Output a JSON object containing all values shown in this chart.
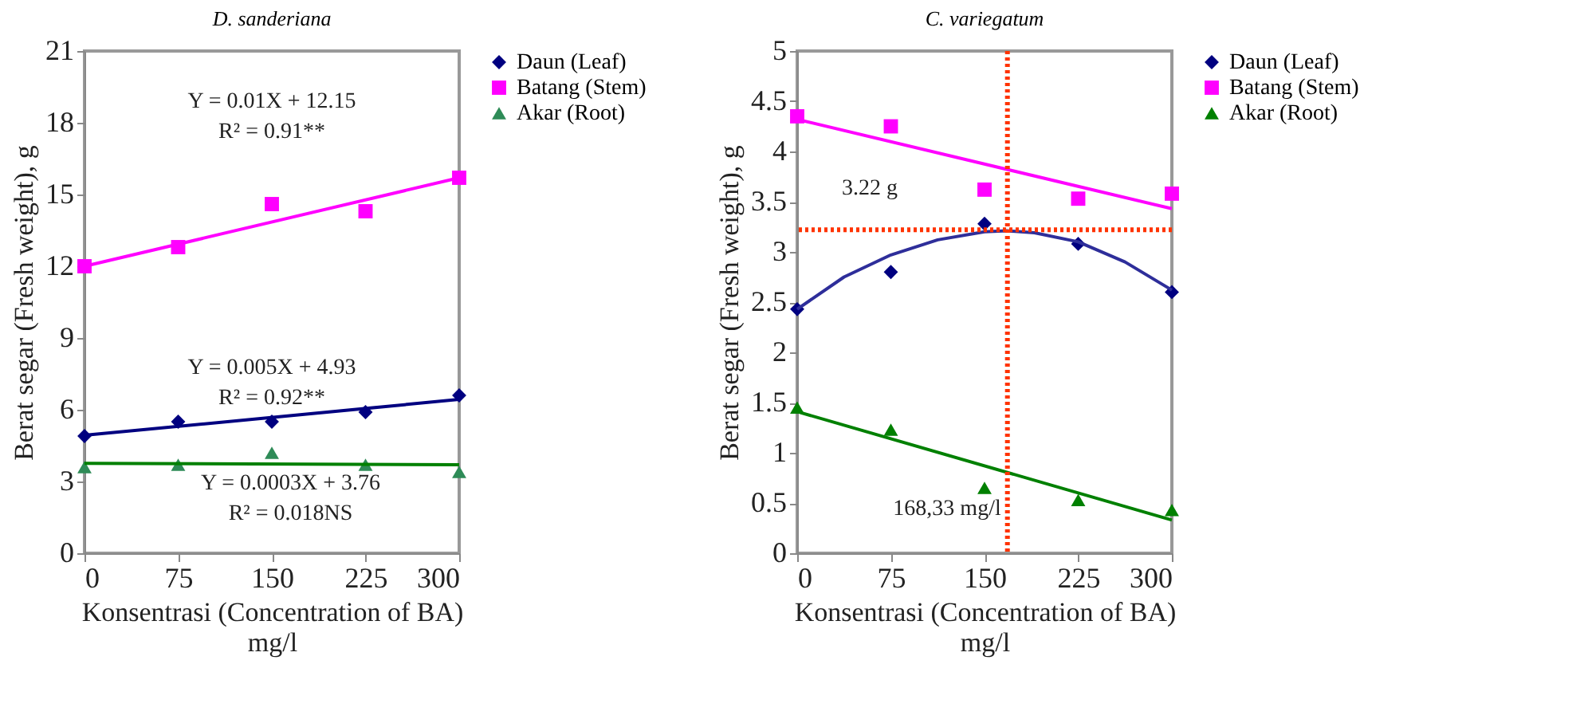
{
  "chart_data": [
    {
      "type": "scatter",
      "title": "D. sanderiana",
      "xlabel": "Konsentrasi (Concentration of BA) mg/l",
      "ylabel": "Berat segar (Fresh weight), g",
      "x": [
        0,
        75,
        150,
        225,
        300
      ],
      "xlim": [
        0,
        300
      ],
      "xticks": [
        0,
        75,
        150,
        225,
        300
      ],
      "ylim": [
        0,
        21
      ],
      "yticks": [
        0,
        3,
        6,
        9,
        12,
        15,
        18,
        21
      ],
      "grid": false,
      "legend": "right",
      "series": [
        {
          "name": "Daun (Leaf)",
          "color": "#000080",
          "marker": "diamond",
          "values": [
            4.9,
            5.5,
            5.5,
            5.9,
            6.6
          ]
        },
        {
          "name": "Batang (Stem)",
          "color": "#ff00ff",
          "marker": "square",
          "values": [
            12.0,
            12.8,
            14.6,
            14.3,
            15.7
          ]
        },
        {
          "name": "Akar (Root)",
          "color": "#2e8b57",
          "marker": "triangle",
          "values": [
            3.6,
            3.7,
            4.2,
            3.7,
            3.4
          ]
        },
        {
          "type": "line",
          "color": "#000080",
          "x": [
            0,
            300
          ],
          "values": [
            4.93,
            6.43
          ]
        },
        {
          "type": "line",
          "color": "#ff00ff",
          "x": [
            0,
            300
          ],
          "values": [
            12.0,
            15.7
          ]
        },
        {
          "type": "line",
          "color": "#008000",
          "x": [
            0,
            300
          ],
          "values": [
            3.76,
            3.7
          ]
        }
      ],
      "annotations": [
        "Y = 0.01X + 12.15",
        "R² = 0.91**",
        "Y = 0.005X + 4.93",
        "R² = 0.92**",
        "Y = 0.0003X + 3.76",
        "R² = 0.018NS"
      ]
    },
    {
      "type": "scatter",
      "title": "C. variegatum",
      "xlabel": "Konsentrasi (Concentration of BA) mg/l",
      "ylabel": "Berat segar (Fresh weight), g",
      "x": [
        0,
        75,
        150,
        225,
        300
      ],
      "xlim": [
        0,
        300
      ],
      "xticks": [
        0,
        75,
        150,
        225,
        300
      ],
      "ylim": [
        0,
        5
      ],
      "yticks": [
        0,
        0.5,
        1,
        1.5,
        2,
        2.5,
        3,
        3.5,
        4,
        4.5,
        5
      ],
      "grid": false,
      "legend": "right",
      "series": [
        {
          "name": "Daun (Leaf)",
          "color": "#000080",
          "marker": "diamond",
          "values": [
            2.43,
            2.8,
            3.28,
            3.08,
            2.6
          ]
        },
        {
          "name": "Batang (Stem)",
          "color": "#ff00ff",
          "marker": "square",
          "values": [
            4.35,
            4.25,
            3.62,
            3.53,
            3.58
          ]
        },
        {
          "name": "Akar (Root)",
          "color": "#008000",
          "marker": "triangle",
          "values": [
            1.45,
            1.23,
            0.65,
            0.53,
            0.43
          ]
        },
        {
          "type": "line",
          "color": "#2e2e9a",
          "x": [
            0,
            37.5,
            75,
            112.5,
            150,
            168,
            190,
            225,
            262.5,
            300
          ],
          "values": [
            2.43,
            2.75,
            2.97,
            3.12,
            3.2,
            3.21,
            3.19,
            3.1,
            2.9,
            2.62
          ]
        },
        {
          "type": "line",
          "color": "#ff00ff",
          "x": [
            0,
            300
          ],
          "values": [
            4.32,
            3.43
          ]
        },
        {
          "type": "line",
          "color": "#008000",
          "x": [
            0,
            300
          ],
          "values": [
            1.41,
            0.33
          ]
        }
      ],
      "ref_lines": [
        {
          "axis": "y",
          "value": 3.22,
          "label": "3.22 g",
          "color": "#ff3300",
          "line_style": "dotted"
        },
        {
          "axis": "x",
          "value": 168.33,
          "label": "168,33 mg/l",
          "color": "#ff3300",
          "line_style": "dotted"
        }
      ]
    }
  ]
}
